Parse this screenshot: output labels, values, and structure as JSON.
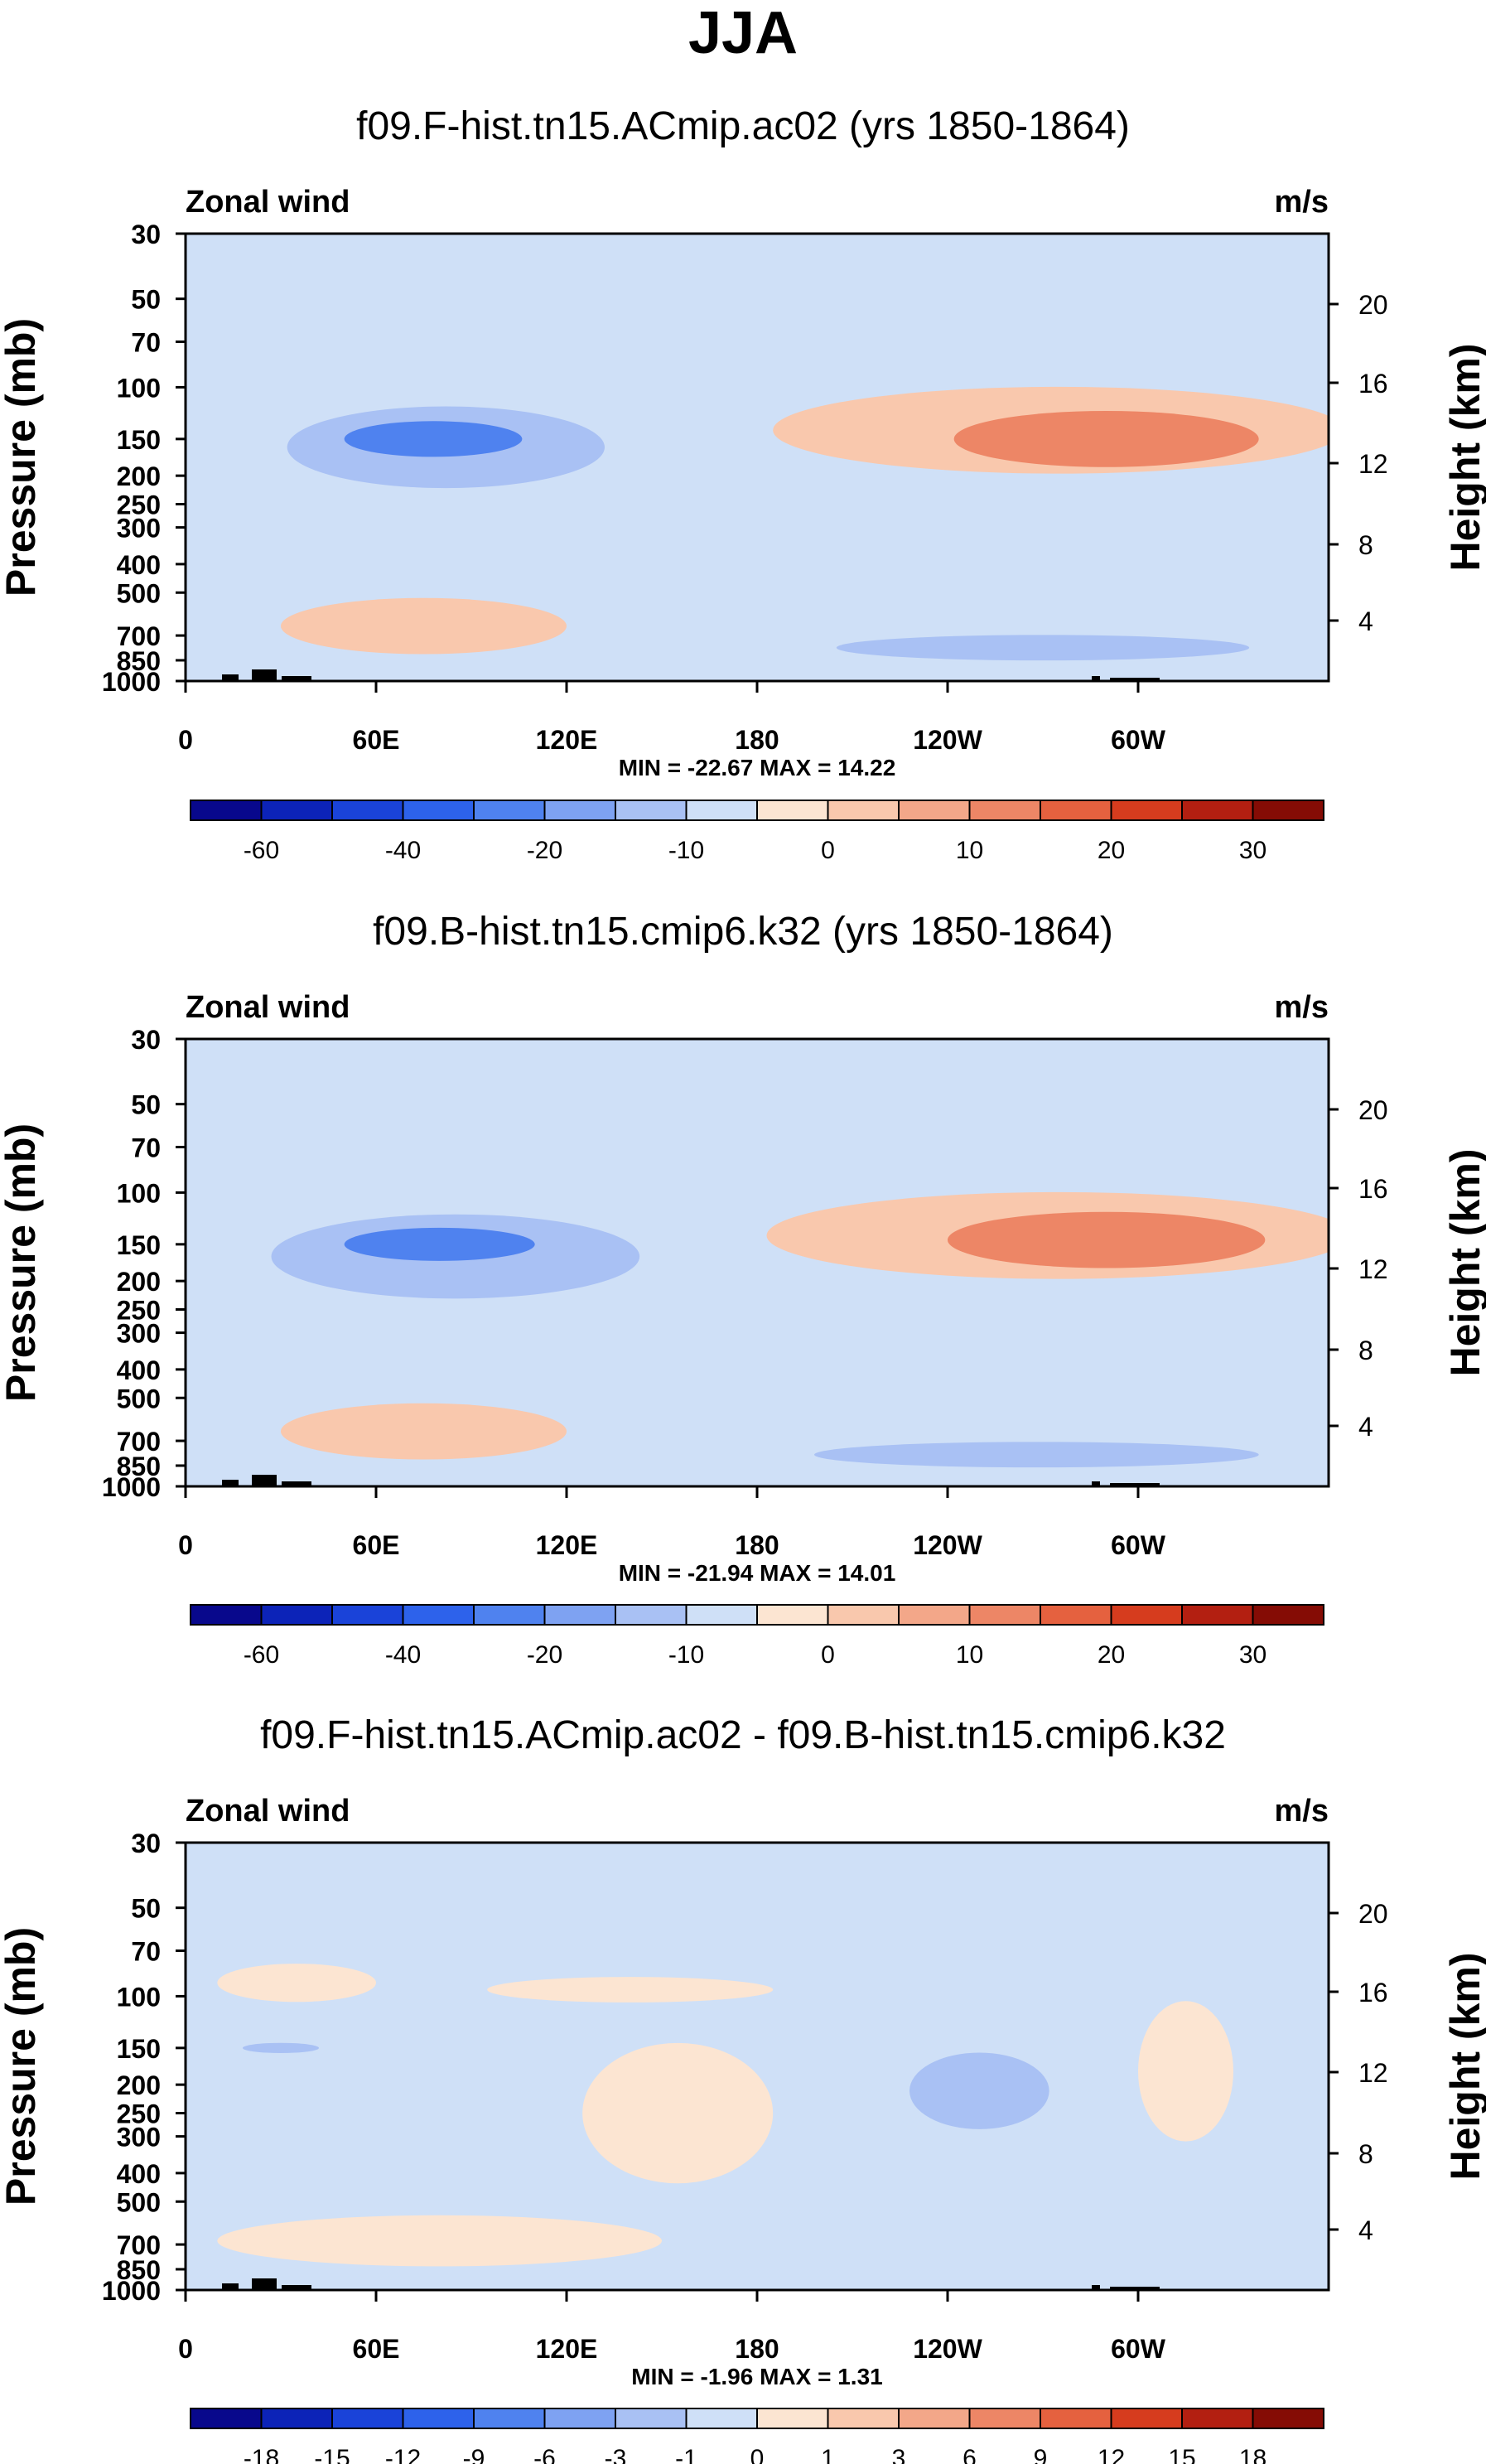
{
  "title": "JJA",
  "colors": {
    "palette_blue": [
      "#08088c",
      "#0c23b8",
      "#1a43d9",
      "#2d62eb",
      "#4f82ef",
      "#7ea2f2",
      "#a9c1f4",
      "#cfe0f7"
    ],
    "palette_red": [
      "#fce5d2",
      "#f9c8ad",
      "#f3a789",
      "#ed8666",
      "#e5613f",
      "#d63c1e",
      "#b31f11",
      "#850c05"
    ],
    "background_field": "#cfe0f7"
  },
  "chart_data": [
    {
      "type": "contour",
      "id": "panel-1",
      "title": "f09.F-hist.tn15.ACmip.ac02 (yrs 1850-1864)",
      "variable_label": "Zonal wind",
      "units_label": "m/s",
      "ylabel_left": "Pressure (mb)",
      "ylabel_right": "Height (km)",
      "x_ticks": [
        "0",
        "60E",
        "120E",
        "180",
        "120W",
        "60W"
      ],
      "x_tick_values": [
        0,
        60,
        120,
        180,
        240,
        300
      ],
      "xlim": [
        0,
        360
      ],
      "pressure_ticks": [
        "30",
        "50",
        "70",
        "100",
        "150",
        "200",
        "250",
        "300",
        "400",
        "500",
        "700",
        "850",
        "1000"
      ],
      "pressure_values": [
        30,
        50,
        70,
        100,
        150,
        200,
        250,
        300,
        400,
        500,
        700,
        850,
        1000
      ],
      "height_ticks": [
        "20",
        "16",
        "12",
        "8",
        "4"
      ],
      "height_values": [
        20,
        16,
        12,
        8,
        4
      ],
      "minmax_label": "MIN = -22.67  MAX =  14.22",
      "min": -22.67,
      "max": 14.22,
      "colorbar_labels": [
        "-60",
        "-40",
        "-20",
        "-10",
        "0",
        "10",
        "20",
        "30"
      ],
      "colorbar_label_positions": [
        1,
        3,
        5,
        7,
        9,
        11,
        13,
        15
      ],
      "features": [
        {
          "level": -20,
          "lon": 78,
          "p": 150,
          "half_width_deg": 28,
          "half_depth_log": 0.14
        },
        {
          "level": -10,
          "lon": 82,
          "p": 160,
          "half_width_deg": 50,
          "half_depth_log": 0.32
        },
        {
          "level": 10,
          "lon": 290,
          "p": 150,
          "half_width_deg": 48,
          "half_depth_log": 0.22
        },
        {
          "level": 5,
          "lon": 275,
          "p": 140,
          "half_width_deg": 90,
          "half_depth_log": 0.34
        },
        {
          "level": 5,
          "lon": 75,
          "p": 650,
          "half_width_deg": 45,
          "half_depth_log": 0.22
        },
        {
          "level": -5,
          "lon": 270,
          "p": 770,
          "half_width_deg": 65,
          "half_depth_log": 0.1
        }
      ]
    },
    {
      "type": "contour",
      "id": "panel-2",
      "title": "f09.B-hist.tn15.cmip6.k32 (yrs 1850-1864)",
      "variable_label": "Zonal wind",
      "units_label": "m/s",
      "ylabel_left": "Pressure (mb)",
      "ylabel_right": "Height (km)",
      "x_ticks": [
        "0",
        "60E",
        "120E",
        "180",
        "120W",
        "60W"
      ],
      "x_tick_values": [
        0,
        60,
        120,
        180,
        240,
        300
      ],
      "xlim": [
        0,
        360
      ],
      "pressure_ticks": [
        "30",
        "50",
        "70",
        "100",
        "150",
        "200",
        "250",
        "300",
        "400",
        "500",
        "700",
        "850",
        "1000"
      ],
      "pressure_values": [
        30,
        50,
        70,
        100,
        150,
        200,
        250,
        300,
        400,
        500,
        700,
        850,
        1000
      ],
      "height_ticks": [
        "20",
        "16",
        "12",
        "8",
        "4"
      ],
      "height_values": [
        20,
        16,
        12,
        8,
        4
      ],
      "minmax_label": "MIN = -21.94  MAX =  14.01",
      "min": -21.94,
      "max": 14.01,
      "colorbar_labels": [
        "-60",
        "-40",
        "-20",
        "-10",
        "0",
        "10",
        "20",
        "30"
      ],
      "colorbar_label_positions": [
        1,
        3,
        5,
        7,
        9,
        11,
        13,
        15
      ],
      "features": [
        {
          "level": -20,
          "lon": 80,
          "p": 150,
          "half_width_deg": 30,
          "half_depth_log": 0.13
        },
        {
          "level": -10,
          "lon": 85,
          "p": 165,
          "half_width_deg": 58,
          "half_depth_log": 0.33
        },
        {
          "level": 10,
          "lon": 290,
          "p": 145,
          "half_width_deg": 50,
          "half_depth_log": 0.22
        },
        {
          "level": 5,
          "lon": 275,
          "p": 140,
          "half_width_deg": 92,
          "half_depth_log": 0.34
        },
        {
          "level": 5,
          "lon": 75,
          "p": 650,
          "half_width_deg": 45,
          "half_depth_log": 0.22
        },
        {
          "level": -5,
          "lon": 268,
          "p": 780,
          "half_width_deg": 70,
          "half_depth_log": 0.1
        }
      ]
    },
    {
      "type": "contour",
      "id": "panel-3",
      "title": "f09.F-hist.tn15.ACmip.ac02 - f09.B-hist.tn15.cmip6.k32",
      "variable_label": "Zonal wind",
      "units_label": "m/s",
      "ylabel_left": "Pressure (mb)",
      "ylabel_right": "Height (km)",
      "x_ticks": [
        "0",
        "60E",
        "120E",
        "180",
        "120W",
        "60W"
      ],
      "x_tick_values": [
        0,
        60,
        120,
        180,
        240,
        300
      ],
      "xlim": [
        0,
        360
      ],
      "pressure_ticks": [
        "30",
        "50",
        "70",
        "100",
        "150",
        "200",
        "250",
        "300",
        "400",
        "500",
        "700",
        "850",
        "1000"
      ],
      "pressure_values": [
        30,
        50,
        70,
        100,
        150,
        200,
        250,
        300,
        400,
        500,
        700,
        850,
        1000
      ],
      "height_ticks": [
        "20",
        "16",
        "12",
        "8",
        "4"
      ],
      "height_values": [
        20,
        16,
        12,
        8,
        4
      ],
      "minmax_label": "MIN = -1.96  MAX =  1.31",
      "min": -1.96,
      "max": 1.31,
      "colorbar_labels": [
        "-18",
        "-15",
        "-12",
        "-9",
        "-6",
        "-3",
        "-1",
        "0",
        "1",
        "3",
        "6",
        "9",
        "12",
        "15",
        "18"
      ],
      "colorbar_label_positions": [
        1,
        2,
        3,
        4,
        5,
        6,
        7,
        8,
        9,
        10,
        11,
        12,
        13,
        14,
        15
      ],
      "features": [
        {
          "level": 1,
          "lon": 155,
          "p": 250,
          "half_width_deg": 30,
          "half_depth_log": 0.55
        },
        {
          "level": 1,
          "lon": 35,
          "p": 90,
          "half_width_deg": 25,
          "half_depth_log": 0.15
        },
        {
          "level": 1,
          "lon": 140,
          "p": 95,
          "half_width_deg": 45,
          "half_depth_log": 0.1
        },
        {
          "level": 1,
          "lon": 315,
          "p": 180,
          "half_width_deg": 15,
          "half_depth_log": 0.55
        },
        {
          "level": 1,
          "lon": 80,
          "p": 680,
          "half_width_deg": 70,
          "half_depth_log": 0.2
        },
        {
          "level": -1,
          "lon": 250,
          "p": 210,
          "half_width_deg": 22,
          "half_depth_log": 0.3
        },
        {
          "level": -1,
          "lon": 30,
          "p": 150,
          "half_width_deg": 12,
          "half_depth_log": 0.04
        }
      ]
    }
  ]
}
